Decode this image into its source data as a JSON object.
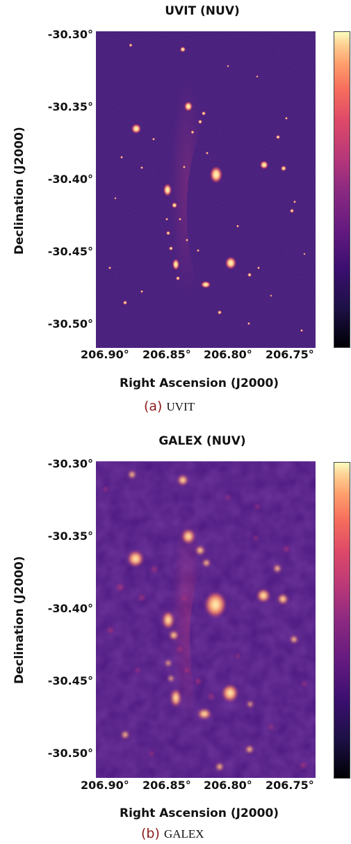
{
  "panels": [
    {
      "title": "UVIT (NUV)",
      "y_ticks": [
        "-30.30°",
        "-30.35°",
        "-30.40°",
        "-30.45°",
        "-30.50°"
      ],
      "x_ticks": [
        "206.90°",
        "206.85°",
        "206.80°",
        "206.75°"
      ],
      "xlabel": "Right Ascension (J2000)",
      "ylabel": "Declination (J2000)",
      "caption_label": "(a)",
      "caption_text": "UVIT"
    },
    {
      "title": "GALEX (NUV)",
      "y_ticks": [
        "-30.30°",
        "-30.35°",
        "-30.40°",
        "-30.45°",
        "-30.50°"
      ],
      "x_ticks": [
        "206.90°",
        "206.85°",
        "206.80°",
        "206.75°"
      ],
      "xlabel": "Right Ascension (J2000)",
      "ylabel": "Declination (J2000)",
      "caption_label": "(b)",
      "caption_text": "GALEX"
    }
  ],
  "colors": {
    "background_sky": "#3b1470",
    "bright_source": "#fcfdbf",
    "colormap": "magma"
  }
}
